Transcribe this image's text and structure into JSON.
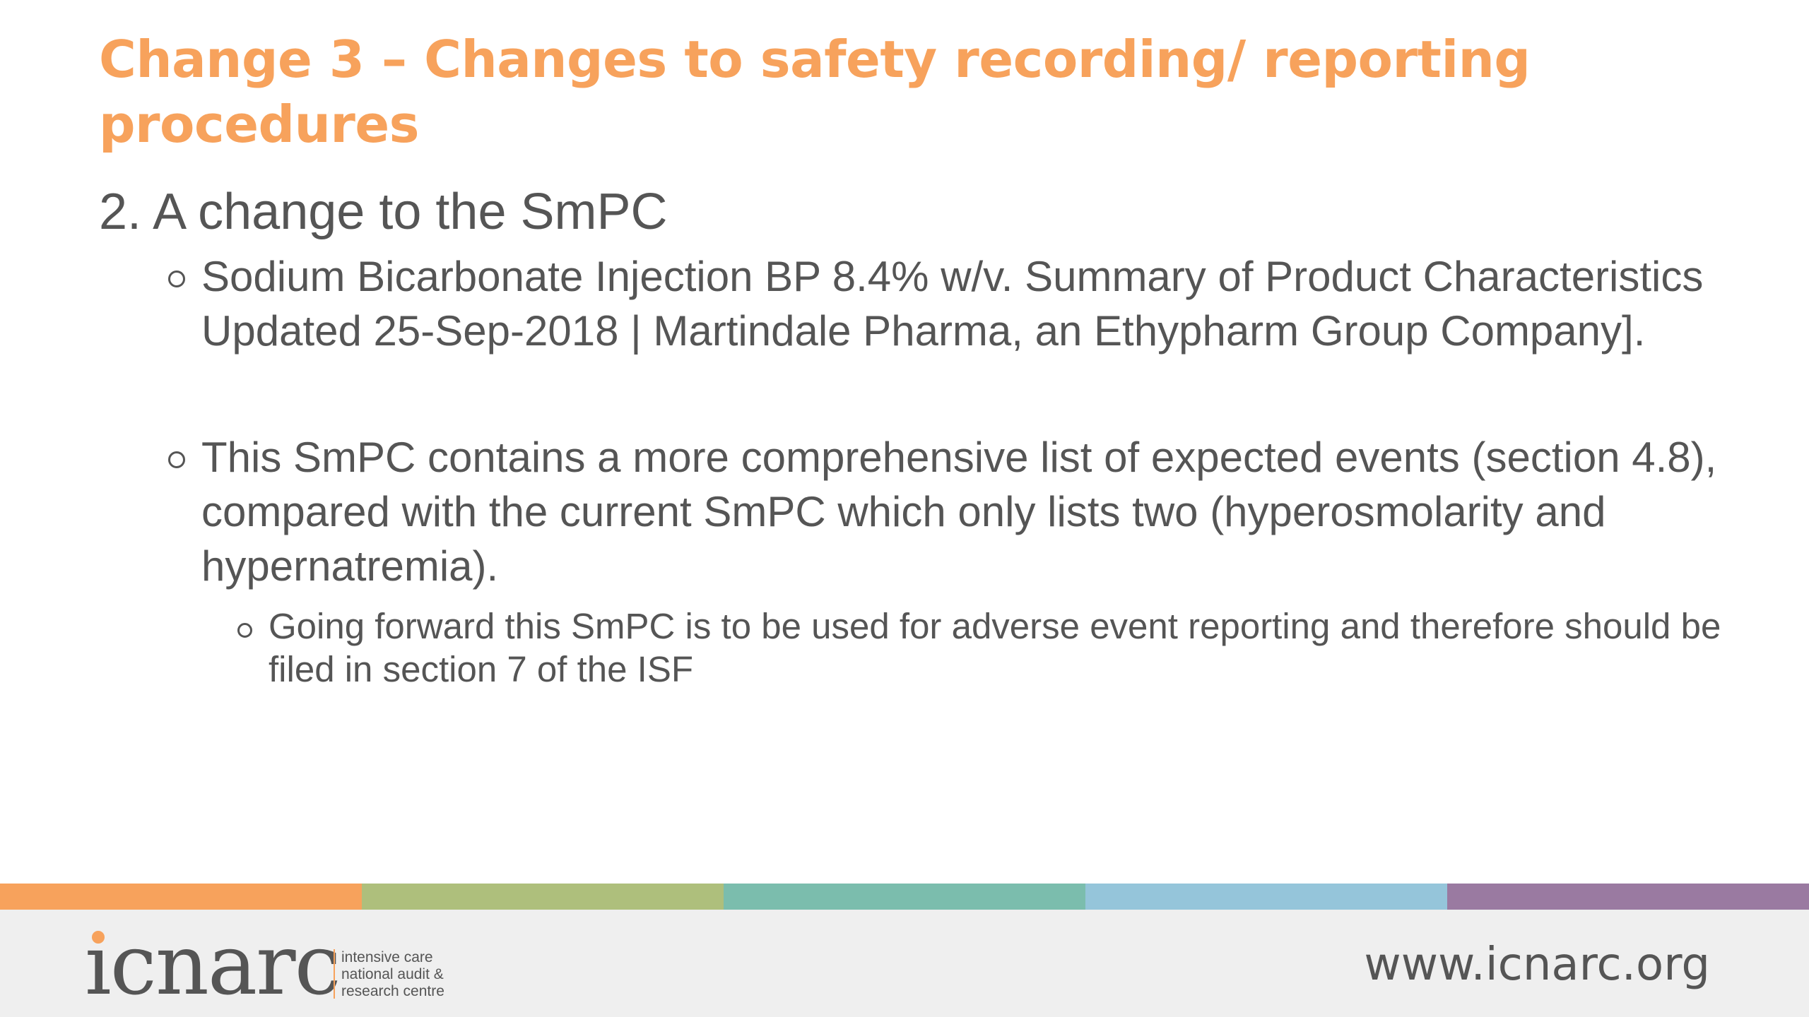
{
  "slide": {
    "title": "Change 3 – Changes to safety recording/ reporting procedures",
    "heading": "2. A change to the SmPC",
    "bullets": [
      {
        "text": "Sodium Bicarbonate Injection BP 8.4% w/v. Summary of Product Characteristics Updated 25-Sep-2018 | Martindale Pharma, an Ethypharm Group Company]."
      },
      {
        "text": "This SmPC contains a more comprehensive list of expected events (section 4.8), compared with the current SmPC which only lists two (hyperosmolarity and hypernatremia).",
        "sub_bullets": [
          {
            "text": "Going forward this SmPC is to be used for adverse event reporting and therefore should be filed in section 7 of the ISF"
          }
        ]
      }
    ]
  },
  "color_bar": [
    "#f7a25c",
    "#aebf7c",
    "#7bbdad",
    "#95c5da",
    "#9a7aa1"
  ],
  "footer": {
    "logo": {
      "word": "icnarc",
      "tagline": [
        "intensive care",
        "national audit &",
        "research centre"
      ]
    },
    "website": "www.icnarc.org"
  },
  "colors": {
    "title": "#f7a25c",
    "text": "#555555",
    "footer_bg": "#efefef"
  }
}
